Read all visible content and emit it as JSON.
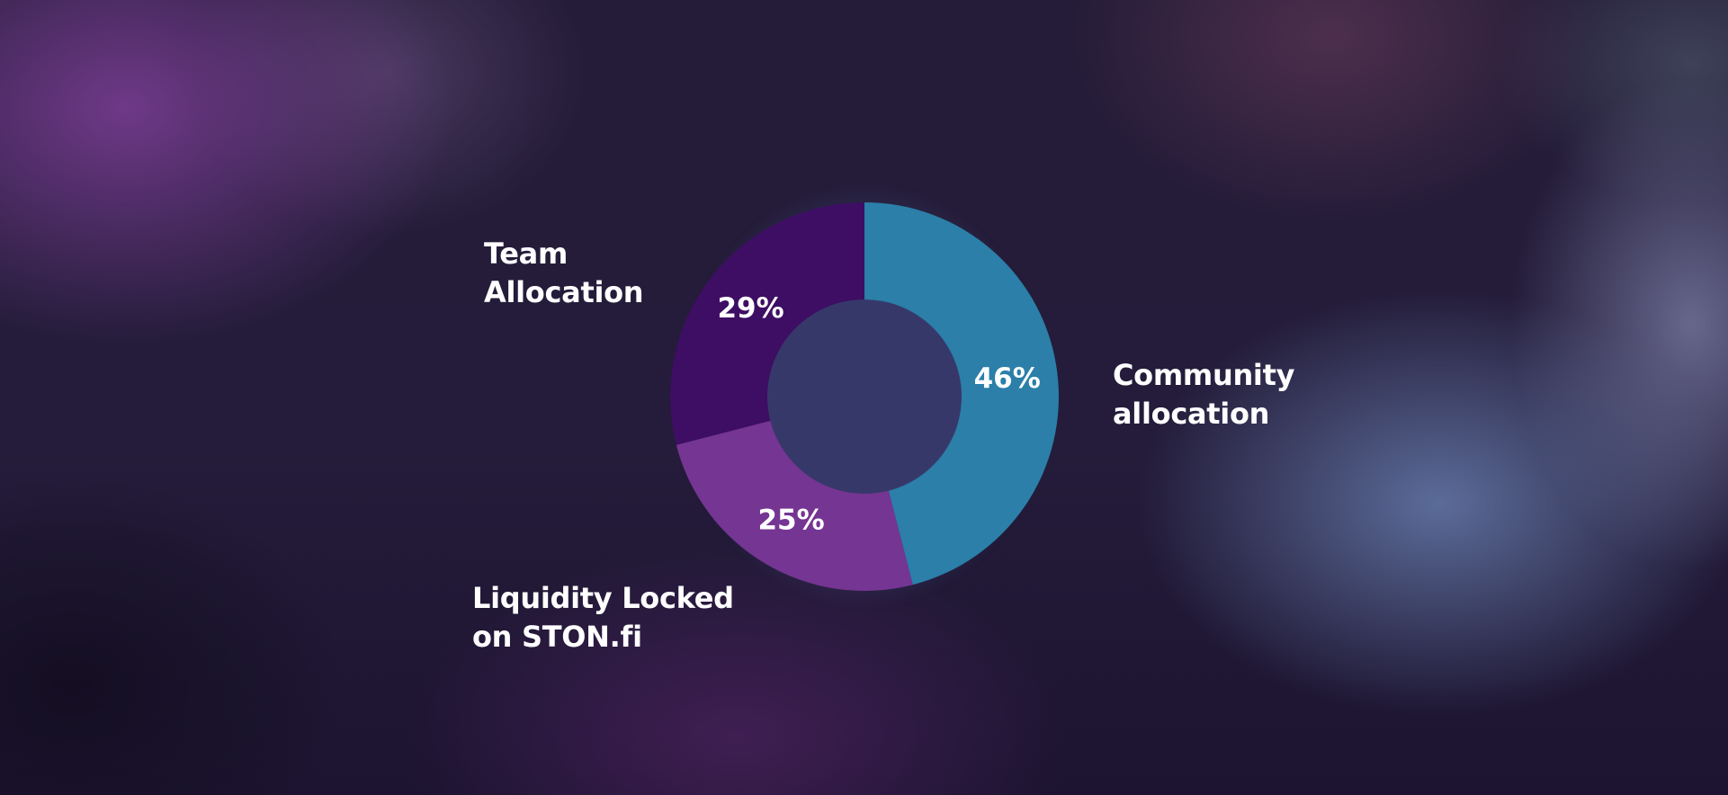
{
  "chart_data": {
    "type": "pie",
    "title": "",
    "donut": true,
    "slices": [
      {
        "label_lines": [
          "Community",
          "allocation"
        ],
        "value": 46,
        "value_label": "46%",
        "color": "#2b7fa8"
      },
      {
        "label_lines": [
          "Liquidity Locked",
          "on STON.fi"
        ],
        "value": 25,
        "value_label": "25%",
        "color": "#753593"
      },
      {
        "label_lines": [
          "Team",
          "Allocation"
        ],
        "value": 29,
        "value_label": "29%",
        "color": "#3d0e63"
      }
    ],
    "center_color": "#37386a",
    "legend": "none"
  }
}
